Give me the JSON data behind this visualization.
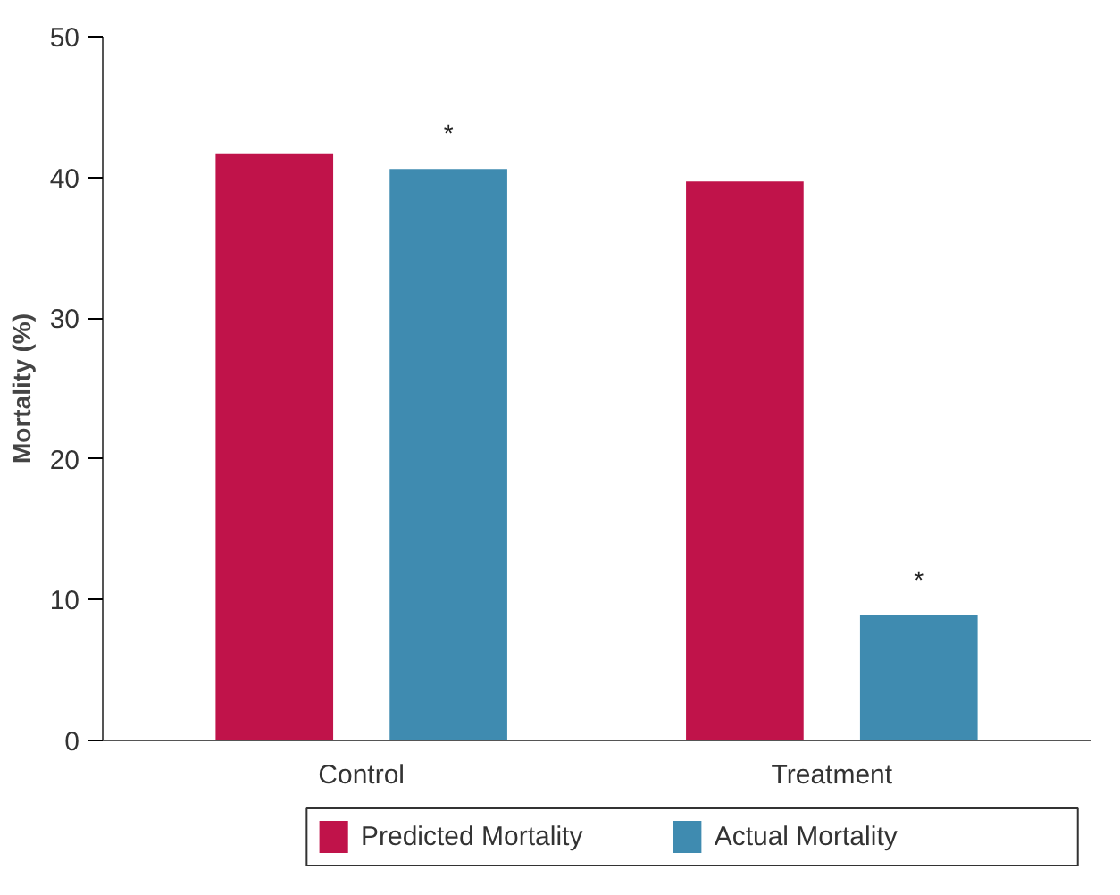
{
  "chart_data": {
    "type": "bar",
    "categories": [
      "Control",
      "Treatment"
    ],
    "ylabel": "Mortality (%)",
    "ylim": [
      0,
      50
    ],
    "yticks": [
      0,
      10,
      20,
      30,
      40,
      50
    ],
    "grid": false,
    "legend": "bottom",
    "series": [
      {
        "name": "Predicted Mortality",
        "color": "#c0134a",
        "values": [
          41.7,
          39.7
        ]
      },
      {
        "name": "Actual Mortality",
        "color": "#3f8bb0",
        "values": [
          40.6,
          8.9
        ]
      }
    ],
    "annotations": [
      "*",
      "*"
    ]
  }
}
